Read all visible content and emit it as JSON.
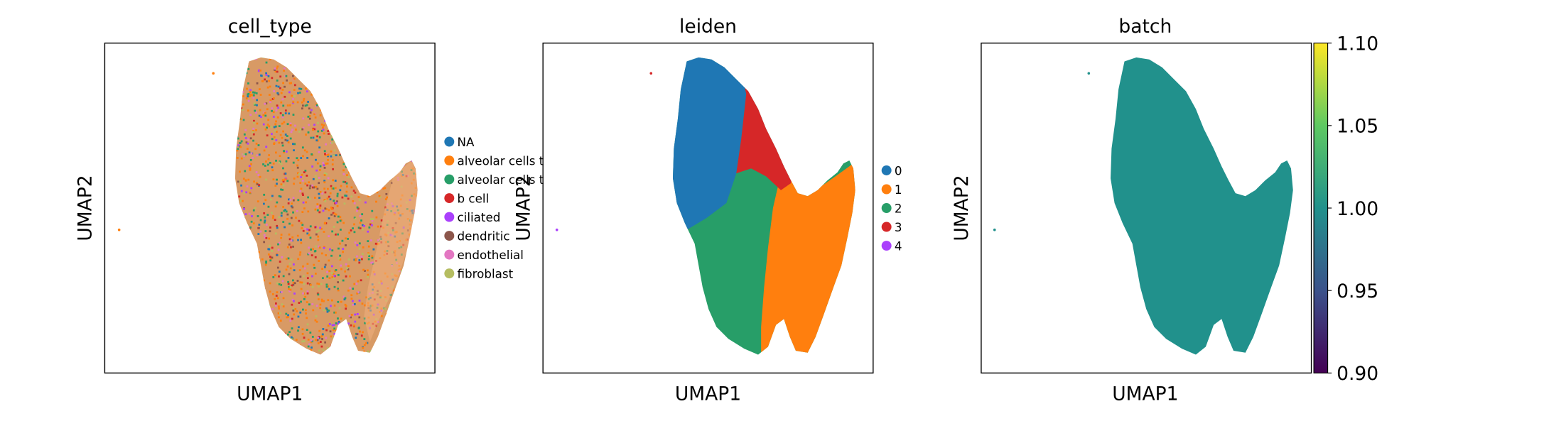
{
  "chart_data": [
    {
      "type": "scatter",
      "title": "cell_type",
      "xlabel": "UMAP1",
      "ylabel": "UMAP2",
      "grid": false,
      "legend": "right",
      "legend_entries": [
        {
          "label": "NA",
          "color": "#1f77b4"
        },
        {
          "label": "alveolar cells t",
          "color": "#ff7f0e"
        },
        {
          "label": "alveolar cells t",
          "color": "#279e68"
        },
        {
          "label": "b cell",
          "color": "#d62728"
        },
        {
          "label": "ciliated",
          "color": "#aa40fc"
        },
        {
          "label": "dendritic",
          "color": "#8c564b"
        },
        {
          "label": "endothelial",
          "color": "#e377c2"
        },
        {
          "label": "fibroblast",
          "color": "#b5bd61"
        }
      ]
    },
    {
      "type": "scatter",
      "title": "leiden",
      "xlabel": "UMAP1",
      "ylabel": "UMAP2",
      "grid": false,
      "legend": "right",
      "legend_entries": [
        {
          "label": "0",
          "color": "#1f77b4"
        },
        {
          "label": "1",
          "color": "#ff7f0e"
        },
        {
          "label": "2",
          "color": "#279e68"
        },
        {
          "label": "3",
          "color": "#d62728"
        },
        {
          "label": "4",
          "color": "#aa40fc"
        }
      ]
    },
    {
      "type": "scatter",
      "title": "batch",
      "xlabel": "UMAP1",
      "ylabel": "UMAP2",
      "grid": false,
      "point_color": "#21918c",
      "colorbar": {
        "range": [
          0.9,
          1.1
        ],
        "ticks": [
          "1.10",
          "1.05",
          "1.00",
          "0.95",
          "0.90"
        ],
        "colormap": "viridis"
      }
    }
  ]
}
